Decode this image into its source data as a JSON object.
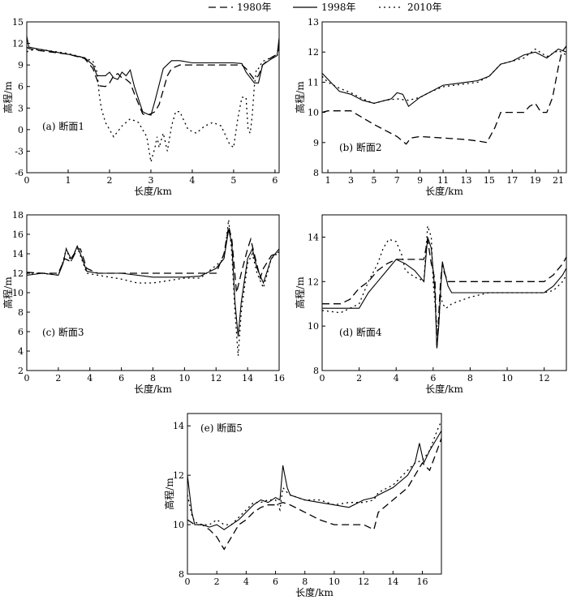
{
  "legend": [
    {
      "label": "1980年",
      "dash": "9,5"
    },
    {
      "label": "1998年",
      "dash": ""
    },
    {
      "label": "2010年",
      "dash": "2,4"
    }
  ],
  "chart_data": [
    {
      "type": "line",
      "panel_label": "(a) 断面1",
      "xlabel": "长度/km",
      "ylabel": "高程/m",
      "xlim": [
        0,
        6.1
      ],
      "ylim": [
        -6,
        15
      ],
      "xticks": [
        0,
        1,
        2,
        3,
        4,
        5,
        6
      ],
      "yticks": [
        -6,
        -3,
        0,
        3,
        6,
        9,
        12,
        15
      ],
      "series": [
        {
          "name": "1980年",
          "x": [
            0,
            0.05,
            0.3,
            1.0,
            1.4,
            1.6,
            1.75,
            1.9,
            2.0,
            2.1,
            2.2,
            2.3,
            2.4,
            2.5,
            2.6,
            2.8,
            2.9,
            3.0,
            3.1,
            3.2,
            3.3,
            3.4,
            3.5,
            3.7,
            4.0,
            4.5,
            5.0,
            5.2,
            5.3,
            5.5,
            5.6,
            5.7,
            5.9,
            6.05,
            6.1
          ],
          "y": [
            11.5,
            11.3,
            11.0,
            10.5,
            9.9,
            8.5,
            6.1,
            6.0,
            6.5,
            7.5,
            7.8,
            7.2,
            7.0,
            6.5,
            5.0,
            2.2,
            2.0,
            2.2,
            2.5,
            3.5,
            5.5,
            7.5,
            8.5,
            9.0,
            9.0,
            9.0,
            9.0,
            9.0,
            8.5,
            7.0,
            7.5,
            9.0,
            10.0,
            10.5,
            12.0
          ]
        },
        {
          "name": "1998年",
          "x": [
            0,
            0.05,
            0.3,
            1.0,
            1.4,
            1.6,
            1.7,
            1.9,
            2.0,
            2.1,
            2.2,
            2.3,
            2.4,
            2.5,
            2.6,
            2.8,
            2.9,
            3.0,
            3.1,
            3.3,
            3.5,
            3.7,
            4.0,
            4.5,
            5.0,
            5.2,
            5.3,
            5.5,
            5.6,
            5.7,
            5.9,
            6.05,
            6.1
          ],
          "y": [
            13.0,
            11.5,
            11.2,
            10.5,
            10.0,
            9.0,
            7.5,
            7.5,
            8.0,
            7.2,
            7.0,
            8.0,
            7.5,
            8.3,
            6.0,
            2.5,
            2.2,
            2.0,
            4.0,
            8.5,
            9.6,
            9.6,
            9.3,
            9.3,
            9.3,
            9.2,
            8.0,
            6.5,
            6.5,
            9.0,
            9.8,
            10.3,
            12.8
          ]
        },
        {
          "name": "2010年",
          "x": [
            0,
            0.05,
            0.3,
            1.0,
            1.4,
            1.6,
            1.7,
            1.75,
            1.8,
            1.9,
            2.1,
            2.3,
            2.5,
            2.7,
            2.8,
            2.9,
            3.0,
            3.1,
            3.15,
            3.2,
            3.3,
            3.4,
            3.5,
            3.6,
            3.7,
            3.9,
            4.1,
            4.3,
            4.5,
            4.7,
            4.9,
            5.0,
            5.1,
            5.2,
            5.3,
            5.35,
            5.4,
            5.45,
            5.5,
            5.55,
            5.6,
            5.7,
            5.9,
            6.05,
            6.1
          ],
          "y": [
            10.8,
            11.0,
            11.2,
            10.6,
            10.0,
            9.5,
            8.0,
            5.0,
            3.0,
            1.0,
            -1.0,
            0.5,
            1.5,
            1.0,
            0.0,
            -1.0,
            -4.5,
            -2.5,
            -1.0,
            -2.5,
            -0.5,
            -3.0,
            0.5,
            2.5,
            2.5,
            0.0,
            -0.5,
            0.5,
            1.0,
            0.5,
            -2.0,
            -2.5,
            1.5,
            4.5,
            4.5,
            0.0,
            -0.5,
            2.0,
            6.0,
            8.5,
            8.5,
            9.5,
            10.0,
            10.3,
            11.5
          ]
        }
      ]
    },
    {
      "type": "line",
      "panel_label": "(b) 断面2",
      "xlabel": "长度/km",
      "ylabel": "高程/m",
      "xlim": [
        0.5,
        21.7
      ],
      "ylim": [
        8,
        13
      ],
      "xticks": [
        1,
        3,
        5,
        7,
        9,
        11,
        13,
        15,
        17,
        19,
        21
      ],
      "yticks": [
        8,
        9,
        10,
        11,
        12,
        13
      ],
      "series": [
        {
          "name": "1980年",
          "x": [
            0.5,
            1,
            3,
            5,
            6,
            7,
            7.8,
            8.2,
            9,
            11,
            13,
            14,
            14.8,
            15.5,
            16,
            17,
            18,
            18.5,
            19,
            19.5,
            20,
            20.5,
            21,
            21.3,
            21.5,
            21.7
          ],
          "y": [
            10.0,
            10.05,
            10.05,
            9.6,
            9.4,
            9.2,
            8.95,
            9.15,
            9.2,
            9.15,
            9.1,
            9.05,
            9.0,
            9.5,
            10.0,
            10.0,
            10.0,
            10.2,
            10.3,
            10.0,
            10.0,
            10.5,
            11.5,
            12.0,
            12.1,
            12.2
          ]
        },
        {
          "name": "1998年",
          "x": [
            0.5,
            1,
            2,
            3,
            4,
            5,
            6,
            6.5,
            7,
            7.5,
            8,
            9,
            10,
            11,
            12,
            13,
            14,
            15,
            16,
            17,
            18,
            19,
            20,
            21,
            21.7
          ],
          "y": [
            11.3,
            11.1,
            10.7,
            10.6,
            10.4,
            10.3,
            10.4,
            10.45,
            10.65,
            10.6,
            10.2,
            10.5,
            10.7,
            10.9,
            10.95,
            11.0,
            11.05,
            11.2,
            11.6,
            11.7,
            11.9,
            12.0,
            11.8,
            12.1,
            12.0
          ]
        },
        {
          "name": "2010年",
          "x": [
            0.5,
            1,
            2,
            3,
            4,
            5,
            6,
            7,
            8,
            9,
            10,
            11,
            12,
            13,
            14,
            15,
            16,
            17,
            18,
            19,
            20,
            21,
            21.7
          ],
          "y": [
            11.2,
            11.0,
            10.8,
            10.65,
            10.45,
            10.3,
            10.4,
            10.45,
            10.4,
            10.5,
            10.7,
            10.85,
            10.9,
            10.95,
            11.0,
            11.2,
            11.6,
            11.7,
            11.8,
            12.1,
            11.85,
            12.05,
            11.9
          ]
        }
      ]
    },
    {
      "type": "line",
      "panel_label": "(c) 断面3",
      "xlabel": "长度/km",
      "ylabel": "高程/m",
      "xlim": [
        0,
        16
      ],
      "ylim": [
        2,
        18
      ],
      "xticks": [
        0,
        2,
        4,
        6,
        8,
        10,
        12,
        14,
        16
      ],
      "yticks": [
        2,
        4,
        6,
        8,
        10,
        12,
        14,
        16,
        18
      ],
      "series": [
        {
          "name": "1980年",
          "x": [
            0,
            1,
            2,
            2.4,
            2.8,
            3.2,
            3.4,
            3.8,
            4.5,
            6,
            8,
            10,
            12,
            12.5,
            12.8,
            13.0,
            13.3,
            13.6,
            14.0,
            14.2,
            14.5,
            14.8,
            15.0,
            15.5,
            16
          ],
          "y": [
            12.1,
            12.0,
            12.0,
            13.5,
            13.2,
            14.5,
            14.5,
            12.5,
            12.0,
            12.0,
            12.0,
            12.0,
            12.0,
            14.0,
            16.8,
            15.5,
            10.0,
            12.0,
            14.5,
            15.5,
            13.5,
            11.5,
            12.5,
            13.8,
            14.2
          ]
        },
        {
          "name": "1998年",
          "x": [
            0,
            1,
            2,
            2.3,
            2.5,
            2.8,
            3.0,
            3.2,
            3.4,
            3.8,
            4.5,
            6,
            8,
            10,
            11,
            12,
            12.5,
            12.8,
            13.0,
            13.2,
            13.4,
            13.6,
            14.0,
            14.3,
            14.6,
            15.0,
            15.5,
            16
          ],
          "y": [
            11.8,
            12.0,
            11.8,
            13.0,
            14.5,
            13.5,
            14.0,
            14.8,
            14.0,
            12.2,
            12.0,
            12.0,
            11.6,
            11.6,
            11.7,
            12.5,
            13.5,
            16.5,
            15.0,
            9.0,
            5.5,
            9.0,
            13.5,
            14.5,
            12.5,
            11.0,
            13.5,
            14.5
          ]
        },
        {
          "name": "2010年",
          "x": [
            0,
            1,
            2,
            2.3,
            2.5,
            2.8,
            3.0,
            3.2,
            3.4,
            3.8,
            4.5,
            6,
            7,
            8,
            10,
            11,
            12,
            12.5,
            12.8,
            13.0,
            13.2,
            13.4,
            13.6,
            14.0,
            14.3,
            14.6,
            15.0,
            15.5,
            16
          ],
          "y": [
            12.0,
            12.0,
            11.8,
            13.2,
            14.5,
            13.2,
            14.0,
            14.7,
            13.8,
            12.0,
            11.8,
            11.4,
            11.0,
            11.0,
            11.5,
            11.5,
            12.8,
            13.5,
            17.5,
            14.0,
            8.0,
            3.5,
            8.0,
            13.0,
            14.0,
            12.0,
            10.5,
            13.5,
            14.2
          ]
        }
      ]
    },
    {
      "type": "line",
      "panel_label": "(d) 断面4",
      "xlabel": "长度/km",
      "ylabel": "高程/m",
      "xlim": [
        0,
        13.2
      ],
      "ylim": [
        8,
        15
      ],
      "xticks": [
        0,
        2,
        4,
        6,
        8,
        10,
        12
      ],
      "yticks": [
        8,
        10,
        12,
        14
      ],
      "series": [
        {
          "name": "1980年",
          "x": [
            0,
            1,
            1.5,
            2,
            2.5,
            3,
            3.5,
            4,
            4.5,
            5,
            5.5,
            5.7,
            5.9,
            6.0,
            6.1,
            6.2,
            6.3,
            6.4,
            6.5,
            6.6,
            6.8,
            7,
            8,
            9,
            10,
            11,
            12,
            12.5,
            13,
            13.2
          ],
          "y": [
            11.0,
            11.0,
            11.2,
            11.7,
            12.0,
            12.5,
            12.8,
            13.0,
            13.0,
            13.0,
            13.0,
            13.9,
            12.8,
            12.5,
            12.0,
            9.0,
            10.5,
            12.0,
            12.8,
            12.4,
            12.0,
            12.0,
            12.0,
            12.0,
            12.0,
            12.0,
            12.0,
            12.3,
            12.8,
            13.1
          ]
        },
        {
          "name": "1998年",
          "x": [
            0,
            1,
            2,
            2.5,
            3,
            3.5,
            4,
            4.5,
            5,
            5.3,
            5.5,
            5.7,
            5.9,
            6.0,
            6.1,
            6.2,
            6.3,
            6.4,
            6.5,
            6.6,
            6.8,
            7,
            8,
            9,
            10,
            11,
            12,
            12.5,
            13,
            13.2
          ],
          "y": [
            10.8,
            10.8,
            10.8,
            11.5,
            12.0,
            12.5,
            13.0,
            12.8,
            12.5,
            12.2,
            12.0,
            14.0,
            13.5,
            12.5,
            11.5,
            9.0,
            10.0,
            11.5,
            12.9,
            12.5,
            11.8,
            11.5,
            11.5,
            11.5,
            11.5,
            11.5,
            11.5,
            11.8,
            12.3,
            12.6
          ]
        },
        {
          "name": "2010年",
          "x": [
            0,
            1,
            2,
            2.5,
            3,
            3.3,
            3.6,
            4.0,
            4.3,
            4.5,
            5,
            5.3,
            5.5,
            5.7,
            5.9,
            6.0,
            6.1,
            6.2,
            6.3,
            6.4,
            6.5,
            6.7,
            7,
            8,
            9,
            10,
            11,
            12,
            12.5,
            13,
            13.2
          ],
          "y": [
            10.7,
            10.6,
            11.0,
            12.0,
            12.8,
            13.5,
            13.9,
            13.8,
            13.2,
            12.5,
            12.2,
            12.1,
            12.0,
            14.5,
            14.0,
            12.0,
            11.0,
            10.0,
            10.0,
            11.5,
            11.0,
            10.8,
            11.0,
            11.3,
            11.5,
            11.5,
            11.5,
            11.5,
            11.6,
            12.0,
            12.3
          ]
        }
      ]
    },
    {
      "type": "line",
      "panel_label": "(e) 断面5",
      "xlabel": "长度/km",
      "ylabel": "高程/m",
      "xlim": [
        0,
        17.3
      ],
      "ylim": [
        8,
        14.5
      ],
      "xticks": [
        0,
        2,
        4,
        6,
        8,
        10,
        12,
        14,
        16
      ],
      "yticks": [
        8,
        10,
        12,
        14
      ],
      "series": [
        {
          "name": "1980年",
          "x": [
            0,
            0.5,
            1,
            1.5,
            2,
            2.5,
            3,
            3.5,
            4,
            4.5,
            5,
            5.5,
            6,
            6.5,
            7,
            8,
            9,
            10,
            11,
            12,
            12.7,
            13,
            14,
            15,
            15.5,
            16,
            16.5,
            17,
            17.3
          ],
          "y": [
            10.2,
            10.0,
            10.0,
            9.8,
            9.5,
            9.0,
            9.5,
            10.0,
            10.2,
            10.5,
            10.7,
            10.8,
            10.8,
            10.9,
            10.8,
            10.5,
            10.2,
            10.0,
            10.0,
            10.0,
            9.8,
            10.5,
            11.0,
            11.5,
            12.0,
            12.5,
            12.2,
            13.0,
            13.5
          ]
        },
        {
          "name": "1998年",
          "x": [
            0,
            0.3,
            0.5,
            1,
            1.5,
            2,
            2.5,
            3,
            3.5,
            4,
            4.5,
            5,
            5.5,
            6,
            6.3,
            6.5,
            6.8,
            7,
            8,
            9,
            10,
            11,
            12,
            12.7,
            13,
            14,
            15,
            15.5,
            15.8,
            16.1,
            16.5,
            17,
            17.3
          ],
          "y": [
            12.0,
            10.5,
            10.0,
            10.0,
            9.9,
            10.0,
            9.8,
            10.0,
            10.2,
            10.5,
            10.8,
            11.0,
            10.9,
            11.1,
            11.0,
            12.4,
            11.5,
            11.2,
            11.0,
            10.9,
            10.8,
            10.7,
            11.0,
            11.1,
            11.2,
            11.5,
            12.0,
            12.5,
            13.3,
            12.5,
            13.0,
            13.5,
            13.8
          ]
        },
        {
          "name": "2010年",
          "x": [
            0,
            0.3,
            0.5,
            1,
            1.5,
            2,
            2.5,
            3,
            3.5,
            4,
            4.5,
            5,
            5.5,
            6,
            6.3,
            6.5,
            6.8,
            7,
            8,
            9,
            10,
            11,
            12,
            12.7,
            13,
            14,
            15,
            15.5,
            16,
            16.5,
            17,
            17.3
          ],
          "y": [
            11.2,
            10.4,
            10.1,
            10.0,
            10.0,
            10.2,
            10.0,
            10.0,
            10.3,
            10.6,
            10.9,
            10.9,
            11.0,
            11.0,
            10.6,
            11.5,
            11.3,
            11.2,
            11.0,
            11.0,
            10.8,
            10.9,
            10.9,
            11.0,
            11.3,
            11.6,
            12.2,
            12.5,
            12.6,
            13.0,
            13.8,
            14.2
          ]
        }
      ]
    }
  ]
}
